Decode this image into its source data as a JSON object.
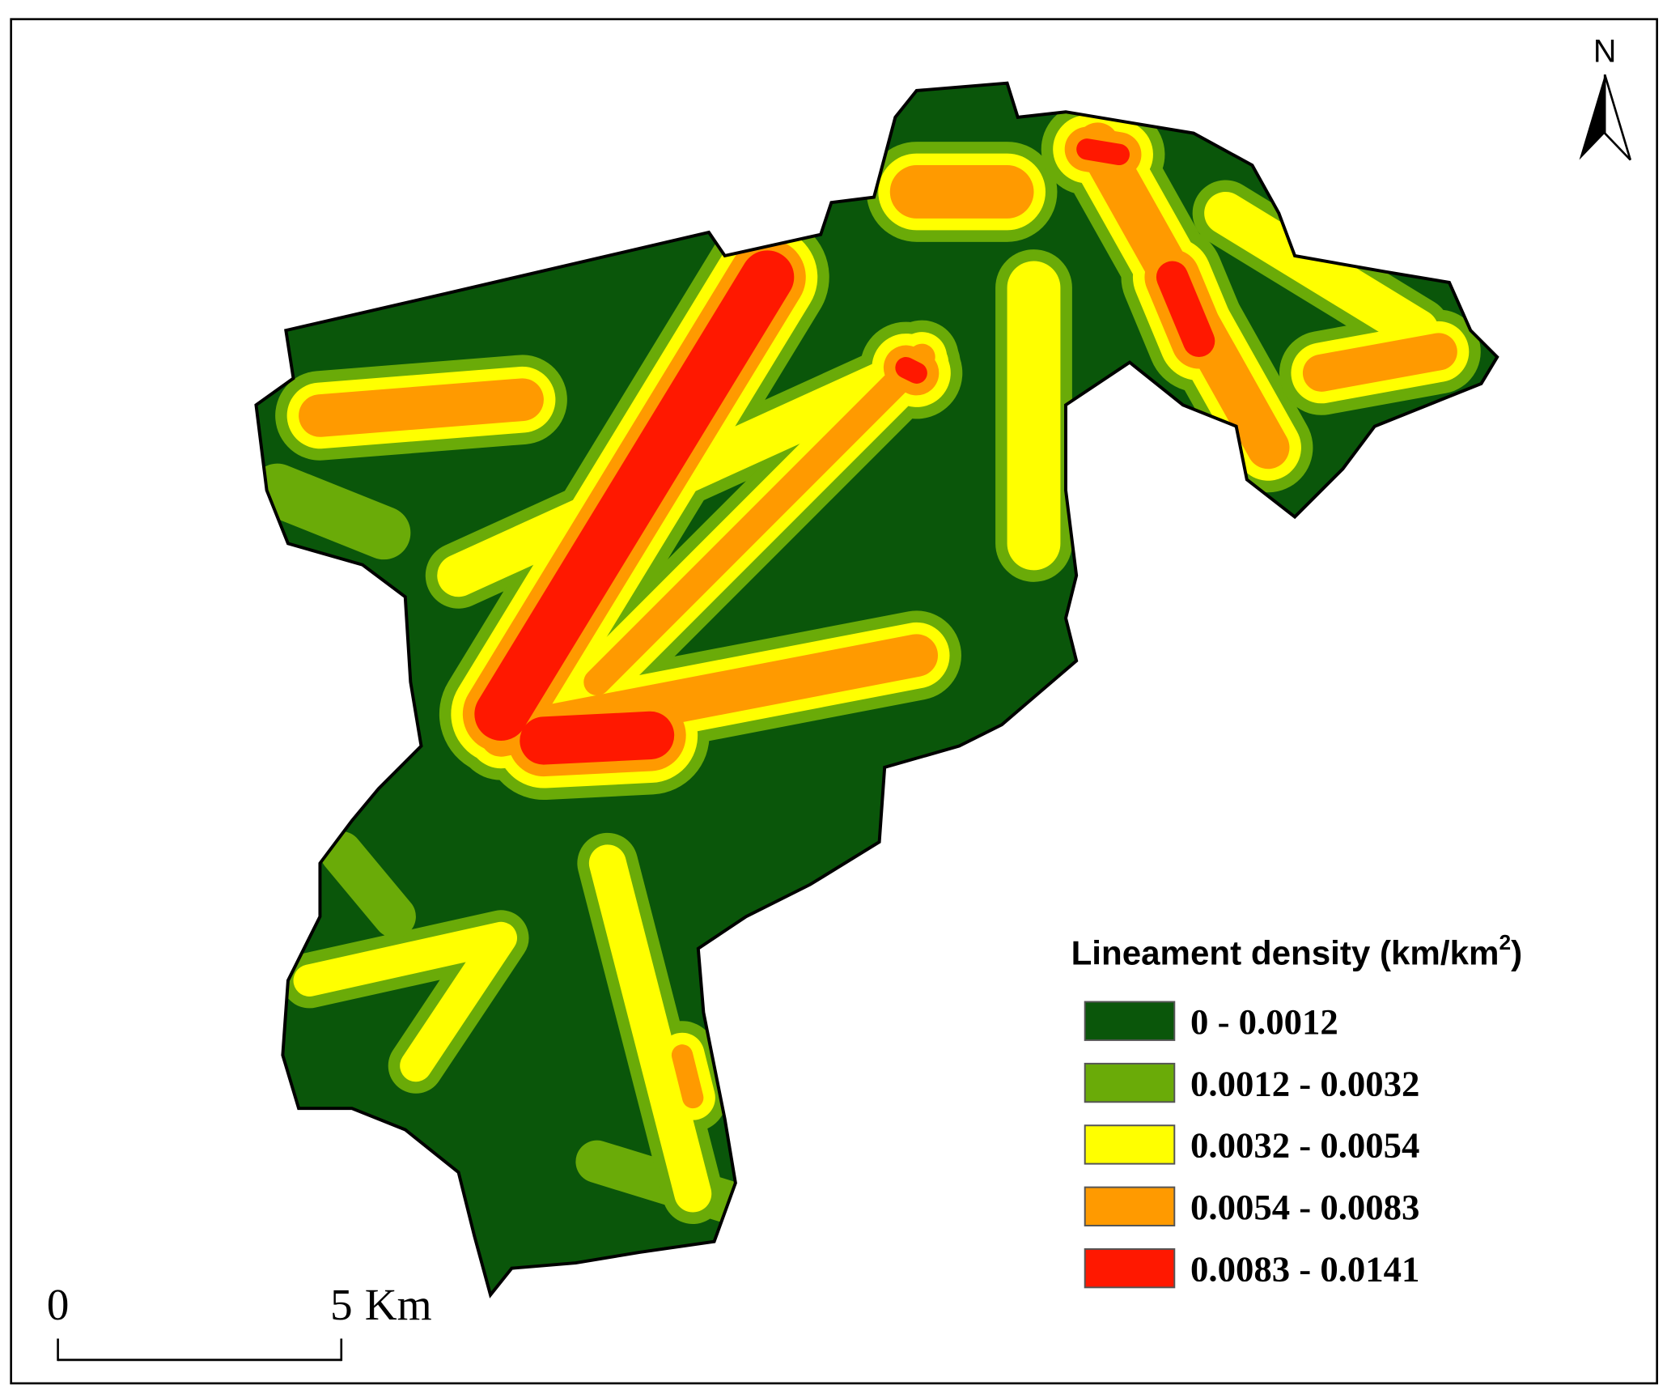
{
  "north": "N",
  "scale_bar": {
    "labels": [
      "0",
      "5"
    ],
    "unit": "Km"
  },
  "legend": {
    "title": "Lineament density (km/km",
    "title_superscript": "2",
    "title_end": ")",
    "items": [
      {
        "label": "0 - 0.0012",
        "color": "#0a560a"
      },
      {
        "label": "0.0012 - 0.0032",
        "color": "#6aab08"
      },
      {
        "label": "0.0032 - 0.0054",
        "color": "#ffff00"
      },
      {
        "label": "0.0054 - 0.0083",
        "color": "#ff9a00"
      },
      {
        "label": "0.0083 - 0.0141",
        "color": "#ff1800"
      }
    ]
  }
}
